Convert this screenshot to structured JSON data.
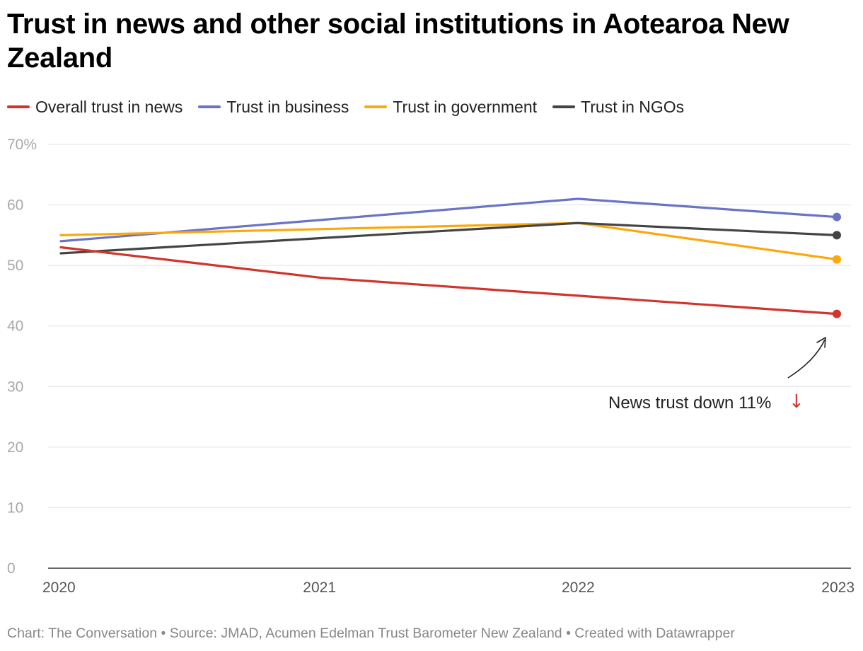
{
  "title": "Trust in news and other social institutions in Aotearoa New Zealand",
  "footer": "Chart: The Conversation • Source: JMAD, Acumen Edelman Trust Barometer New Zealand • Created with Datawrapper",
  "chart_data": {
    "type": "line",
    "title": "Trust in news and other social institutions in Aotearoa New Zealand",
    "xlabel": "",
    "ylabel": "",
    "x": [
      "2020",
      "2021",
      "2022",
      "2023"
    ],
    "ylim": [
      0,
      70
    ],
    "y_ticks": [
      "0",
      "10",
      "20",
      "30",
      "40",
      "50",
      "60",
      "70%"
    ],
    "grid": true,
    "legend_position": "top-left",
    "series": [
      {
        "name": "Overall trust in news",
        "color": "#d0342c",
        "values": [
          53,
          48,
          45,
          42
        ]
      },
      {
        "name": "Trust in business",
        "color": "#6b73c5",
        "values": [
          54,
          57.5,
          61,
          58
        ]
      },
      {
        "name": "Trust in government",
        "color": "#fca80c",
        "values": [
          55,
          56,
          57,
          51
        ]
      },
      {
        "name": "Trust in NGOs",
        "color": "#444444",
        "values": [
          52,
          54.5,
          57,
          55
        ]
      }
    ],
    "annotation": {
      "text": "News trust down 11%",
      "arrow_glyph": "↓",
      "arrow_color": "#d0342c",
      "target_series": "Overall trust in news",
      "target_x": "2023"
    }
  }
}
